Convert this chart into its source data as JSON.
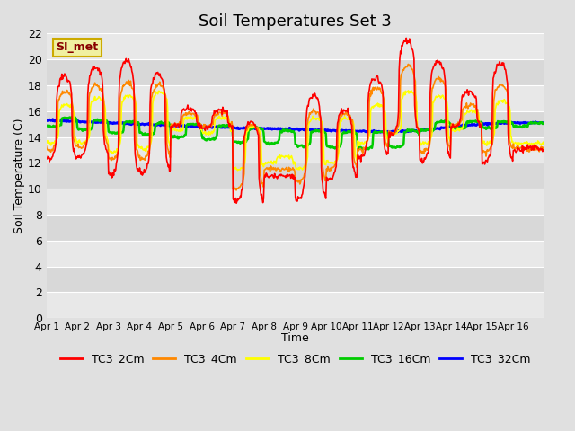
{
  "title": "Soil Temperatures Set 3",
  "xlabel": "Time",
  "ylabel": "Soil Temperature (C)",
  "ylim": [
    0,
    22
  ],
  "yticks": [
    0,
    2,
    4,
    6,
    8,
    10,
    12,
    14,
    16,
    18,
    20,
    22
  ],
  "series_colors": {
    "TC3_2Cm": "#ff0000",
    "TC3_4Cm": "#ff8800",
    "TC3_8Cm": "#ffff00",
    "TC3_16Cm": "#00cc00",
    "TC3_32Cm": "#0000ff"
  },
  "series_labels": [
    "TC3_2Cm",
    "TC3_4Cm",
    "TC3_8Cm",
    "TC3_16Cm",
    "TC3_32Cm"
  ],
  "legend_box_color": "#f0f0a0",
  "legend_box_edge": "#ccaa00",
  "annotation_text": "SI_met",
  "annotation_color": "#880000",
  "bg_color": "#e0e0e0",
  "band_colors": [
    "#e8e8e8",
    "#d8d8d8"
  ],
  "xtick_labels": [
    "Apr 1",
    "Apr 2",
    "Apr 3",
    "Apr 4",
    "Apr 5",
    "Apr 6",
    "Apr 7",
    "Apr 8",
    "Apr 9",
    "Apr 10",
    "Apr 11",
    "Apr 12",
    "Apr 13",
    "Apr 14",
    "Apr 15",
    "Apr 16"
  ],
  "n_days": 16,
  "points_per_day": 48,
  "line_widths": [
    1.2,
    1.2,
    1.2,
    1.8,
    2.0
  ],
  "tc3_2cm_peaks": [
    18.7,
    19.4,
    19.9,
    18.9,
    16.2,
    16.1,
    15.2,
    11.0,
    17.2,
    16.1,
    18.6,
    21.5,
    19.9,
    17.5,
    19.7,
    13.2
  ],
  "tc3_2cm_troughs": [
    12.2,
    12.5,
    11.0,
    11.2,
    14.8,
    14.7,
    9.0,
    11.0,
    9.2,
    10.7,
    12.4,
    14.2,
    12.2,
    14.8,
    12.0,
    13.0
  ],
  "tc3_4cm_peaks": [
    17.5,
    18.0,
    18.2,
    18.0,
    15.8,
    15.8,
    15.0,
    11.5,
    16.0,
    15.8,
    17.8,
    19.5,
    18.5,
    16.5,
    18.0,
    13.0
  ],
  "tc3_4cm_troughs": [
    13.0,
    13.2,
    12.3,
    12.3,
    14.9,
    14.8,
    10.0,
    11.5,
    10.5,
    11.5,
    13.0,
    14.3,
    12.8,
    14.9,
    12.8,
    13.2
  ],
  "tc3_8cm_peaks": [
    16.5,
    17.0,
    17.2,
    17.5,
    15.5,
    15.5,
    14.8,
    12.5,
    15.5,
    15.5,
    16.5,
    17.5,
    17.2,
    16.0,
    16.8,
    13.5
  ],
  "tc3_8cm_troughs": [
    13.5,
    13.5,
    12.8,
    13.0,
    14.5,
    14.3,
    11.5,
    12.0,
    11.5,
    12.0,
    13.5,
    14.2,
    13.5,
    14.5,
    13.5,
    13.5
  ],
  "tc3_16cm_peaks": [
    15.5,
    15.3,
    15.2,
    15.1,
    15.0,
    14.9,
    14.7,
    14.5,
    14.5,
    14.4,
    14.4,
    14.5,
    15.2,
    15.2,
    15.2,
    15.1
  ],
  "tc3_16cm_troughs": [
    14.8,
    14.6,
    14.3,
    14.2,
    14.0,
    13.8,
    13.6,
    13.5,
    13.3,
    13.2,
    13.1,
    13.2,
    14.5,
    14.7,
    14.7,
    14.8
  ],
  "tc3_32cm_base": [
    15.3,
    15.2,
    15.1,
    15.0,
    14.9,
    14.8,
    14.7,
    14.65,
    14.6,
    14.5,
    14.45,
    14.4,
    14.5,
    14.8,
    15.0,
    15.1
  ]
}
